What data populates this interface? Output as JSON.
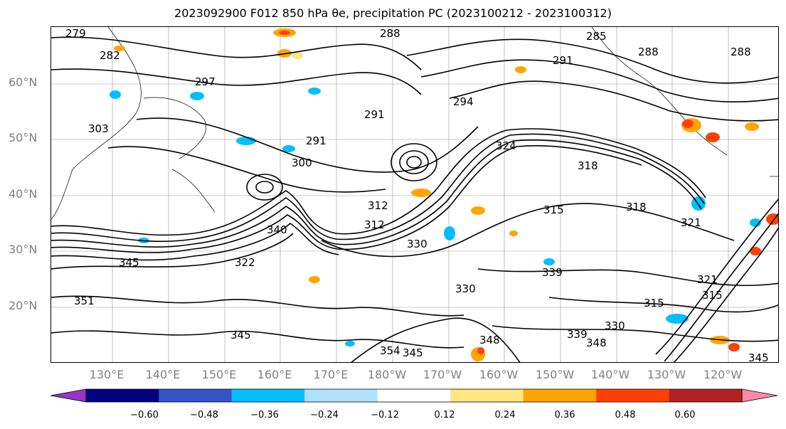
{
  "title": "2023092900 F012 850 hPa θe, precipitation PC (2023100212 - 2023100312)",
  "lat_labels": [
    "60°N",
    "50°N",
    "40°N",
    "30°N",
    "20°N"
  ],
  "lon_labels": [
    "130°E",
    "140°E",
    "150°E",
    "160°E",
    "170°E",
    "180°W",
    "170°W",
    "160°W",
    "150°W",
    "140°W",
    "130°W",
    "120°W"
  ],
  "contour_labels": [
    "279",
    "282",
    "288",
    "285",
    "288",
    "288",
    "291",
    "297",
    "294",
    "291",
    "303",
    "291",
    "300",
    "324",
    "318",
    "312",
    "312",
    "315",
    "318",
    "321",
    "340",
    "330",
    "339",
    "330",
    "315",
    "321",
    "315",
    "339",
    "330",
    "348",
    "348",
    "345",
    "345",
    "354",
    "345",
    "351",
    "322",
    "345"
  ],
  "colorbar": {
    "ticks": [
      "−0.60",
      "−0.48",
      "−0.36",
      "−0.24",
      "−0.12",
      "0.12",
      "0.24",
      "0.36",
      "0.48",
      "0.60"
    ],
    "colors": [
      "#9933cc",
      "#000080",
      "#3355cc",
      "#00bfff",
      "#b0e0ff",
      "#ffffff",
      "#ffe680",
      "#ffa500",
      "#ff4000",
      "#b22222",
      "#ff88aa"
    ]
  }
}
